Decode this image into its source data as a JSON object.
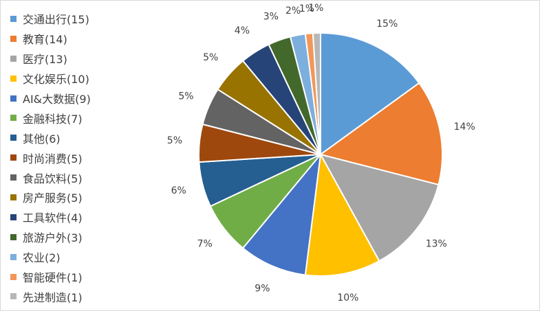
{
  "chart_data": {
    "type": "pie",
    "start_angle_deg": 0,
    "direction": "clockwise",
    "slice_border": "#ffffff",
    "legend_position": "left",
    "slices": [
      {
        "label": "交通出行(15)",
        "value": 15,
        "pct_label": "15%",
        "color": "#5B9BD5"
      },
      {
        "label": "教育(14)",
        "value": 14,
        "pct_label": "14%",
        "color": "#ED7D31"
      },
      {
        "label": "医疗(13)",
        "value": 13,
        "pct_label": "13%",
        "color": "#A5A5A5"
      },
      {
        "label": "文化娱乐(10)",
        "value": 10,
        "pct_label": "10%",
        "color": "#FFC000"
      },
      {
        "label": "AI&大数据(9)",
        "value": 9,
        "pct_label": "9%",
        "color": "#4472C4"
      },
      {
        "label": "金融科技(7)",
        "value": 7,
        "pct_label": "7%",
        "color": "#70AD47"
      },
      {
        "label": "其他(6)",
        "value": 6,
        "pct_label": "6%",
        "color": "#255E91"
      },
      {
        "label": "时尚消费(5)",
        "value": 5,
        "pct_label": "5%",
        "color": "#9E480E"
      },
      {
        "label": "食品饮料(5)",
        "value": 5,
        "pct_label": "5%",
        "color": "#636363"
      },
      {
        "label": "房产服务(5)",
        "value": 5,
        "pct_label": "5%",
        "color": "#997300"
      },
      {
        "label": "工具软件(4)",
        "value": 4,
        "pct_label": "4%",
        "color": "#264478"
      },
      {
        "label": "旅游户外(3)",
        "value": 3,
        "pct_label": "3%",
        "color": "#43682B"
      },
      {
        "label": "农业(2)",
        "value": 2,
        "pct_label": "2%",
        "color": "#7CAFDD"
      },
      {
        "label": "智能硬件(1)",
        "value": 1,
        "pct_label": "1%",
        "color": "#F1975A"
      },
      {
        "label": "先进制造(1)",
        "value": 1,
        "pct_label": "1%",
        "color": "#B7B7B7"
      }
    ]
  }
}
